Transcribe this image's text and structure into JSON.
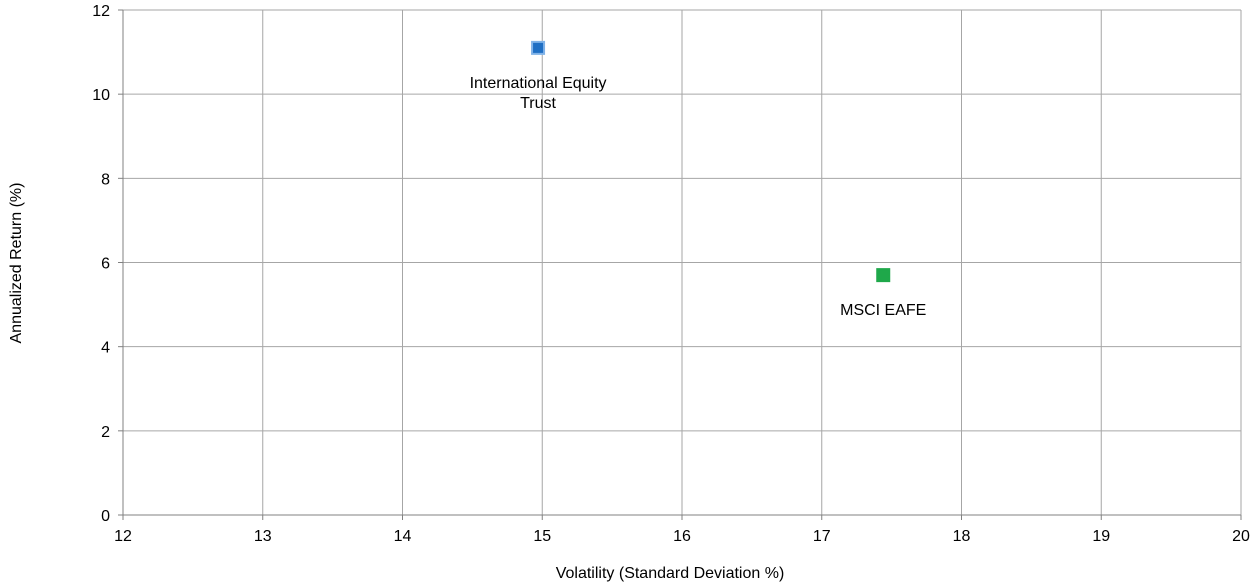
{
  "chart_data": {
    "type": "scatter",
    "xlabel": "Volatility (Standard Deviation %)",
    "ylabel": "Annualized Return (%)",
    "xlim": [
      12,
      20
    ],
    "ylim": [
      0,
      12
    ],
    "xticks": [
      12,
      13,
      14,
      15,
      16,
      17,
      18,
      19,
      20
    ],
    "yticks": [
      0,
      2,
      4,
      6,
      8,
      10,
      12
    ],
    "grid": true,
    "legend": "none",
    "points": [
      {
        "label_lines": [
          "International Equity",
          "Trust"
        ],
        "x": 14.97,
        "y": 11.1,
        "color": "#1f6fc4",
        "edge_color": "#7fb2e8"
      },
      {
        "label_lines": [
          "MSCI EAFE"
        ],
        "x": 17.44,
        "y": 5.7,
        "color": "#1fa84a",
        "edge_color": "#1fa84a"
      }
    ]
  }
}
